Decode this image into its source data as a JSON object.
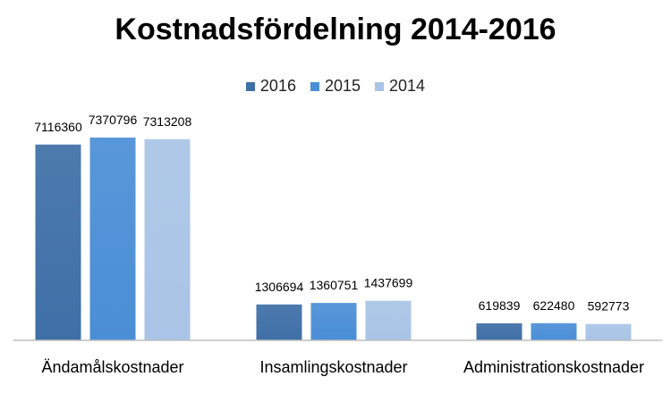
{
  "chart_data": {
    "type": "bar",
    "title": "Kostnadsfördelning 2014-2016",
    "categories": [
      "Ändamålskostnader",
      "Insamlingskostnader",
      "Administrationskostnader"
    ],
    "series": [
      {
        "name": "2016",
        "values": [
          7116360,
          1306694,
          619839
        ],
        "color": "#3E6FA6"
      },
      {
        "name": "2015",
        "values": [
          7370796,
          1360751,
          622480
        ],
        "color": "#4A8ED6"
      },
      {
        "name": "2014",
        "values": [
          7313208,
          1437699,
          592773
        ],
        "color": "#A9C4E6"
      }
    ],
    "ylim": [
      0,
      7500000
    ],
    "grid": false,
    "legend_position": "top"
  }
}
